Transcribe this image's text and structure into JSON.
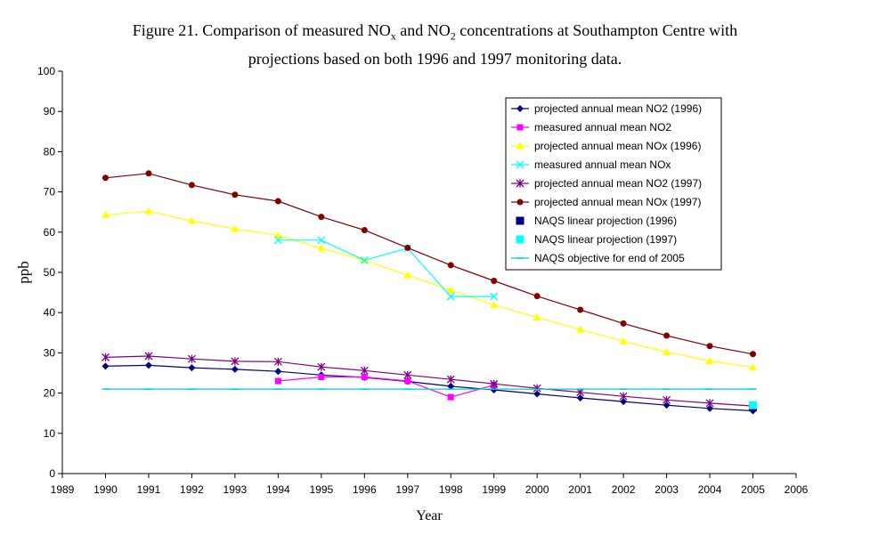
{
  "title_lines": [
    [
      "Figure 21. Comparison of measured NO",
      {
        "sub": "x"
      },
      " and NO",
      {
        "sub": "2"
      },
      " concentrations at Southampton Centre with"
    ],
    [
      "projections based on both 1996 and 1997 monitoring data."
    ]
  ],
  "chart_data": {
    "type": "line",
    "title": "Figure 21. Comparison of measured NOx and NO2 concentrations at Southampton Centre with projections based on both 1996 and 1997 monitoring data.",
    "xlabel": "Year",
    "ylabel": "ppb",
    "xlim": [
      1989,
      2006
    ],
    "ylim": [
      0,
      100
    ],
    "xticks": [
      1989,
      1990,
      1991,
      1992,
      1993,
      1994,
      1995,
      1996,
      1997,
      1998,
      1999,
      2000,
      2001,
      2002,
      2003,
      2004,
      2005,
      2006
    ],
    "yticks": [
      0,
      10,
      20,
      30,
      40,
      50,
      60,
      70,
      80,
      90,
      100
    ],
    "grid": false,
    "legend_position": "top-right",
    "series": [
      {
        "name": "projected annual mean NO2 (1996)",
        "color": "#000080",
        "marker": "diamond",
        "line": true,
        "x": [
          1990,
          1991,
          1992,
          1993,
          1994,
          1995,
          1996,
          1997,
          1998,
          1999,
          2000,
          2001,
          2002,
          2003,
          2004,
          2005
        ],
        "y": [
          26.7,
          26.9,
          26.3,
          25.9,
          25.4,
          24.5,
          23.9,
          22.9,
          21.7,
          20.8,
          19.8,
          18.8,
          17.9,
          17.0,
          16.2,
          15.6
        ]
      },
      {
        "name": "measured annual mean NO2",
        "color": "#FF00FF",
        "marker": "square",
        "line": true,
        "x": [
          1994,
          1995,
          1996,
          1997,
          1998,
          1999
        ],
        "y": [
          23,
          24,
          24,
          23,
          19,
          22
        ]
      },
      {
        "name": "projected annual mean NOx (1996)",
        "color": "#FFFF00",
        "marker": "triangle",
        "line": true,
        "x": [
          1990,
          1991,
          1992,
          1993,
          1994,
          1995,
          1996,
          1997,
          1998,
          1999,
          2000,
          2001,
          2002,
          2003,
          2004,
          2005
        ],
        "y": [
          64.3,
          65.2,
          62.8,
          60.8,
          59.2,
          56.0,
          53.0,
          49.3,
          45.6,
          41.9,
          38.8,
          35.8,
          32.9,
          30.2,
          28.0,
          26.4
        ]
      },
      {
        "name": "measured annual mean NOx",
        "color": "#00FFFF",
        "marker": "x",
        "line": true,
        "x": [
          1994,
          1995,
          1996,
          1997,
          1998,
          1999
        ],
        "y": [
          58,
          58,
          53,
          56,
          44,
          44
        ]
      },
      {
        "name": "projected annual mean NO2 (1997)",
        "color": "#800080",
        "marker": "star",
        "line": true,
        "x": [
          1990,
          1991,
          1992,
          1993,
          1994,
          1995,
          1996,
          1997,
          1998,
          1999,
          2000,
          2001,
          2002,
          2003,
          2004,
          2005
        ],
        "y": [
          28.9,
          29.2,
          28.5,
          27.9,
          27.8,
          26.5,
          25.6,
          24.5,
          23.4,
          22.3,
          21.2,
          20.2,
          19.2,
          18.3,
          17.5,
          16.8
        ]
      },
      {
        "name": "projected annual mean NOx (1997)",
        "color": "#800000",
        "marker": "circle",
        "line": true,
        "x": [
          1990,
          1991,
          1992,
          1993,
          1994,
          1995,
          1996,
          1997,
          1998,
          1999,
          2000,
          2001,
          2002,
          2003,
          2004,
          2005
        ],
        "y": [
          73.5,
          74.6,
          71.7,
          69.3,
          67.7,
          63.8,
          60.5,
          56.1,
          51.8,
          47.9,
          44.1,
          40.7,
          37.3,
          34.3,
          31.7,
          29.7
        ]
      },
      {
        "name": "NAQS linear projection (1996)",
        "color": "#000080",
        "marker": "bigsquare",
        "line": false,
        "x": [
          2005
        ],
        "y": [
          16.5
        ]
      },
      {
        "name": "NAQS linear projection (1997)",
        "color": "#00FFFF",
        "marker": "bigsquare",
        "line": false,
        "x": [
          2005
        ],
        "y": [
          17
        ]
      },
      {
        "name": "NAQS objective for end of 2005",
        "color": "#00CCCC",
        "marker": "dash",
        "line": true,
        "x": [
          1990,
          1991,
          1992,
          1993,
          1994,
          1995,
          1996,
          1997,
          1998,
          1999,
          2000,
          2001,
          2002,
          2003,
          2004,
          2005
        ],
        "y": [
          21,
          21,
          21,
          21,
          21,
          21,
          21,
          21,
          21,
          21,
          21,
          21,
          21,
          21,
          21,
          21
        ]
      }
    ]
  }
}
